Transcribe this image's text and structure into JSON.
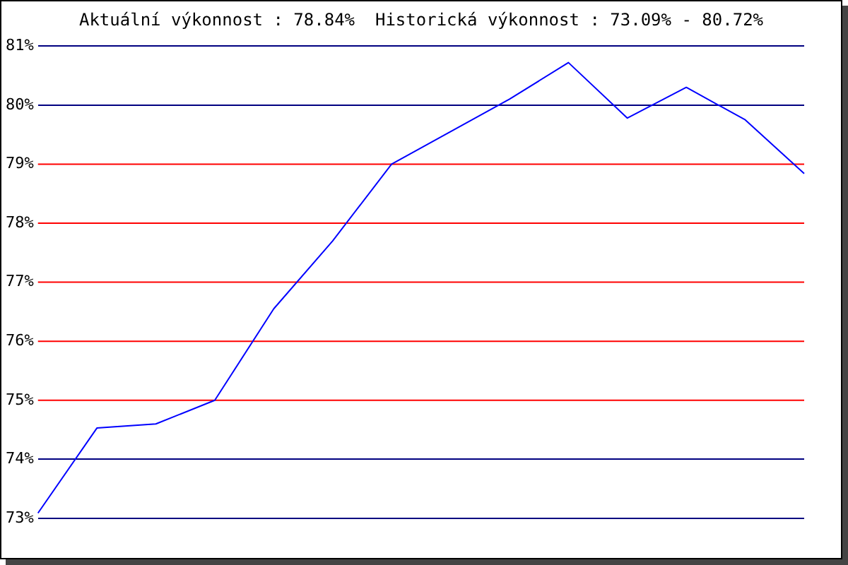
{
  "chart_data": {
    "type": "line",
    "title": "Aktuální výkonnost : 78.84%  Historická výkonnost : 73.09% - 80.72%",
    "categories": [
      null,
      null,
      null,
      null,
      null,
      null,
      null,
      null,
      null,
      null,
      null,
      null,
      null,
      null
    ],
    "series": [
      {
        "color": "#0000ff",
        "values": [
          73.09,
          74.53,
          74.6,
          75.0,
          76.55,
          77.7,
          79.0,
          79.55,
          80.1,
          80.72,
          79.78,
          80.3,
          79.75,
          78.84
        ]
      }
    ],
    "ylim": [
      73,
      81
    ],
    "yticks": [
      {
        "value": 73,
        "label": "73%"
      },
      {
        "value": 74,
        "label": "74%"
      },
      {
        "value": 75,
        "label": "75%"
      },
      {
        "value": 76,
        "label": "76%"
      },
      {
        "value": 77,
        "label": "77%"
      },
      {
        "value": 78,
        "label": "78%"
      },
      {
        "value": 79,
        "label": "79%"
      },
      {
        "value": 80,
        "label": "80%"
      },
      {
        "value": 81,
        "label": "81%"
      }
    ],
    "grid": "y",
    "legend": false,
    "marker": "none",
    "line_style": "solid",
    "tick_labels": "y",
    "ref_lines": [
      {
        "axis": "y",
        "value": 75,
        "color": "#ff0000"
      },
      {
        "axis": "y",
        "value": 76,
        "color": "#ff0000"
      },
      {
        "axis": "y",
        "value": 77,
        "color": "#ff0000"
      },
      {
        "axis": "y",
        "value": 78,
        "color": "#ff0000"
      },
      {
        "axis": "y",
        "value": 79,
        "color": "#ff0000"
      }
    ]
  }
}
